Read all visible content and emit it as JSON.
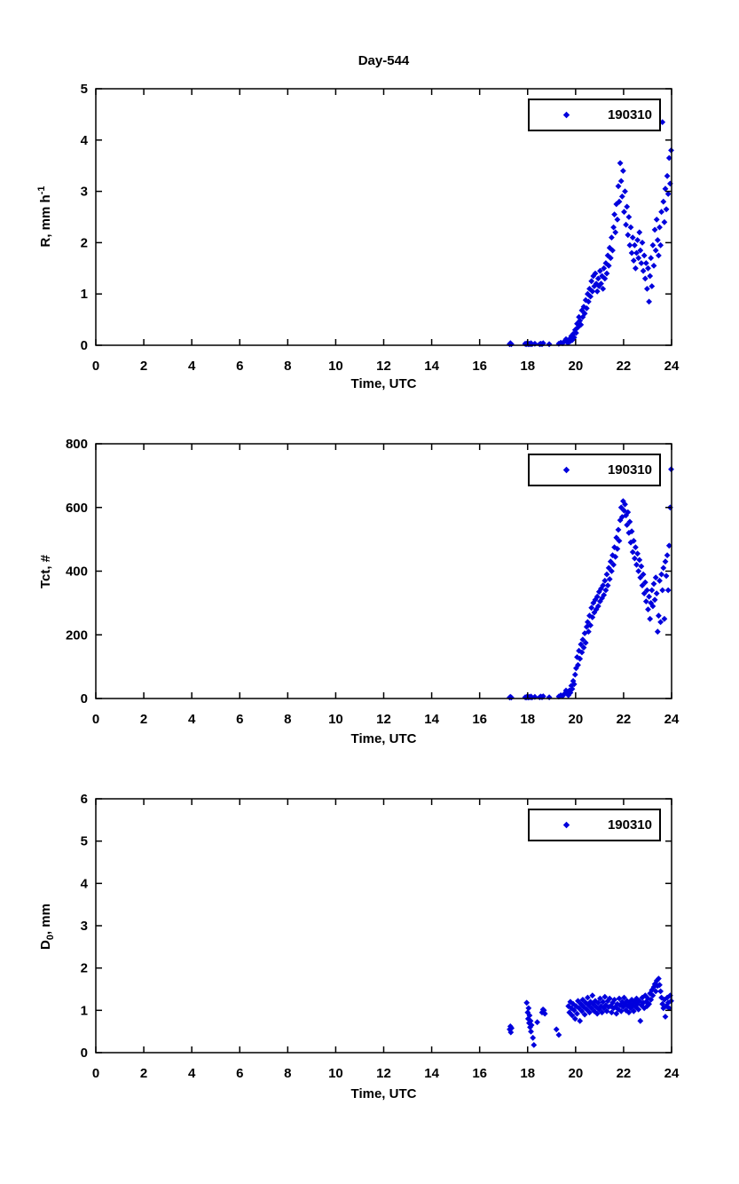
{
  "colors": {
    "marker": "#0000dd",
    "axis": "#000000",
    "background": "#ffffff"
  },
  "chart_data": [
    {
      "type": "scatter",
      "title": "Day-544",
      "xlabel": "Time, UTC",
      "ylabel_plain": "R, mm h^-1",
      "ylabel_parts": {
        "pre": "R, mm h",
        "sub": "",
        "sup": "-1",
        "post": ""
      },
      "xlim": [
        0,
        24
      ],
      "ylim": [
        0,
        5
      ],
      "xticks": [
        0,
        2,
        4,
        6,
        8,
        10,
        12,
        14,
        16,
        18,
        20,
        22,
        24
      ],
      "yticks": [
        0,
        1,
        2,
        3,
        4,
        5
      ],
      "legend": "190310",
      "legend_position": "upper-right",
      "grid": false,
      "marker": "diamond",
      "marker_color": "#0000dd",
      "points_early": [
        [
          17.25,
          0.02
        ],
        [
          17.28,
          0.04
        ],
        [
          17.32,
          0.02
        ],
        [
          17.9,
          0.03
        ],
        [
          17.94,
          0.02
        ],
        [
          17.98,
          0.04
        ],
        [
          18.02,
          0.02
        ],
        [
          18.06,
          0.03
        ],
        [
          18.1,
          0.02
        ],
        [
          18.14,
          0.04
        ],
        [
          18.18,
          0.02
        ],
        [
          18.3,
          0.03
        ],
        [
          18.5,
          0.02
        ],
        [
          18.55,
          0.03
        ],
        [
          18.6,
          0.02
        ],
        [
          18.65,
          0.04
        ],
        [
          18.9,
          0.02
        ],
        [
          19.3,
          0.03
        ],
        [
          19.38,
          0.05
        ],
        [
          19.46,
          0.04
        ],
        [
          19.54,
          0.08
        ],
        [
          19.6,
          0.12
        ],
        [
          19.64,
          0.06
        ]
      ],
      "points_dense": {
        "t_start": 19.7,
        "t_step": 0.04,
        "values": [
          0.05,
          0.12,
          0.08,
          0.18,
          0.1,
          0.22,
          0.15,
          0.3,
          0.24,
          0.42,
          0.35,
          0.55,
          0.48,
          0.4,
          0.68,
          0.55,
          0.75,
          0.62,
          0.88,
          0.72,
          1.0,
          0.85,
          1.1,
          0.95,
          1.25,
          1.05,
          1.35,
          1.15,
          1.4,
          1.2,
          1.05,
          1.3,
          1.15,
          1.45,
          1.2,
          1.35,
          1.1,
          1.5,
          1.3,
          1.6,
          1.4,
          1.75,
          1.55,
          1.9,
          1.7,
          2.1,
          1.85,
          2.3,
          2.55,
          2.2,
          2.75,
          2.45,
          3.1,
          2.8,
          3.55,
          3.2,
          2.9,
          3.4,
          2.6,
          3.0,
          2.35,
          2.7,
          2.15,
          2.5,
          1.95,
          2.3,
          1.8,
          2.1,
          1.65,
          1.95,
          1.5,
          1.8,
          2.05,
          1.7,
          2.2,
          1.85,
          1.6,
          2.0,
          1.45,
          1.75,
          1.3,
          1.6,
          1.1,
          1.5,
          0.85,
          1.35,
          1.7,
          1.15,
          1.95,
          1.55,
          2.25,
          1.85,
          2.45,
          2.05,
          1.75,
          2.3,
          1.95,
          2.6,
          4.35,
          2.8,
          2.4,
          3.05,
          2.65,
          3.3,
          2.95,
          3.65,
          3.15,
          3.8
        ]
      }
    },
    {
      "type": "scatter",
      "title": "",
      "xlabel": "Time, UTC",
      "ylabel_plain": "Tct, #",
      "ylabel_parts": {
        "pre": "Tct, #",
        "sub": "",
        "sup": "",
        "post": ""
      },
      "xlim": [
        0,
        24
      ],
      "ylim": [
        0,
        800
      ],
      "xticks": [
        0,
        2,
        4,
        6,
        8,
        10,
        12,
        14,
        16,
        18,
        20,
        22,
        24
      ],
      "yticks": [
        0,
        200,
        400,
        600,
        800
      ],
      "legend": "190310",
      "legend_position": "upper-right",
      "grid": false,
      "marker": "diamond",
      "marker_color": "#0000dd",
      "points_early": [
        [
          17.25,
          3
        ],
        [
          17.28,
          5
        ],
        [
          17.32,
          3
        ],
        [
          17.9,
          4
        ],
        [
          17.94,
          3
        ],
        [
          17.98,
          6
        ],
        [
          18.02,
          3
        ],
        [
          18.06,
          5
        ],
        [
          18.1,
          4
        ],
        [
          18.14,
          6
        ],
        [
          18.18,
          3
        ],
        [
          18.3,
          5
        ],
        [
          18.5,
          4
        ],
        [
          18.55,
          6
        ],
        [
          18.6,
          4
        ],
        [
          18.65,
          7
        ],
        [
          18.9,
          4
        ],
        [
          19.3,
          6
        ],
        [
          19.38,
          10
        ],
        [
          19.46,
          8
        ],
        [
          19.54,
          15
        ],
        [
          19.6,
          25
        ],
        [
          19.64,
          18
        ]
      ],
      "points_dense": {
        "t_start": 19.7,
        "t_step": 0.04,
        "values": [
          10,
          25,
          18,
          40,
          30,
          55,
          45,
          75,
          95,
          130,
          105,
          150,
          125,
          170,
          145,
          185,
          160,
          205,
          175,
          225,
          240,
          210,
          260,
          230,
          285,
          255,
          300,
          270,
          310,
          280,
          320,
          290,
          335,
          305,
          345,
          315,
          355,
          325,
          370,
          340,
          390,
          355,
          410,
          375,
          430,
          400,
          450,
          420,
          475,
          445,
          505,
          470,
          530,
          495,
          560,
          600,
          570,
          620,
          590,
          610,
          575,
          545,
          585,
          520,
          555,
          490,
          525,
          460,
          495,
          440,
          475,
          420,
          455,
          400,
          435,
          380,
          415,
          355,
          390,
          330,
          365,
          305,
          340,
          280,
          320,
          250,
          300,
          340,
          290,
          360,
          310,
          380,
          330,
          210,
          260,
          370,
          240,
          390,
          340,
          410,
          250,
          430,
          385,
          450,
          340,
          480,
          600,
          720
        ]
      }
    },
    {
      "type": "scatter",
      "title": "",
      "xlabel": "Time, UTC",
      "ylabel_plain": "D_0, mm",
      "ylabel_parts": {
        "pre": "D",
        "sub": "0",
        "sup": "",
        "post": ", mm"
      },
      "xlim": [
        0,
        24
      ],
      "ylim": [
        0,
        6
      ],
      "xticks": [
        0,
        2,
        4,
        6,
        8,
        10,
        12,
        14,
        16,
        18,
        20,
        22,
        24
      ],
      "yticks": [
        0,
        1,
        2,
        3,
        4,
        5,
        6
      ],
      "legend": "190310",
      "legend_position": "upper-right",
      "grid": false,
      "marker": "diamond",
      "marker_color": "#0000dd",
      "points_early": [
        [
          17.25,
          0.55
        ],
        [
          17.28,
          0.62
        ],
        [
          17.3,
          0.48
        ],
        [
          17.33,
          0.58
        ],
        [
          17.96,
          1.18
        ],
        [
          18.0,
          0.95
        ],
        [
          18.02,
          0.8
        ],
        [
          18.04,
          1.05
        ],
        [
          18.06,
          0.7
        ],
        [
          18.08,
          0.88
        ],
        [
          18.1,
          0.6
        ],
        [
          18.12,
          0.75
        ],
        [
          18.14,
          0.5
        ],
        [
          18.16,
          0.65
        ],
        [
          18.22,
          0.35
        ],
        [
          18.26,
          0.18
        ],
        [
          18.4,
          0.72
        ],
        [
          18.6,
          0.95
        ],
        [
          18.64,
          1.02
        ],
        [
          18.68,
          1.0
        ],
        [
          18.72,
          0.92
        ],
        [
          19.2,
          0.55
        ],
        [
          19.3,
          0.42
        ]
      ],
      "points_dense": {
        "t_start": 19.7,
        "t_step": 0.04,
        "values": [
          1.1,
          0.95,
          1.2,
          1.05,
          0.88,
          1.15,
          1.0,
          0.8,
          1.1,
          0.92,
          1.22,
          1.05,
          0.75,
          1.15,
          0.98,
          1.25,
          1.08,
          0.9,
          1.18,
          1.02,
          1.3,
          1.12,
          0.95,
          1.2,
          1.05,
          1.35,
          1.15,
          0.98,
          1.22,
          1.08,
          0.92,
          1.18,
          1.02,
          1.28,
          1.1,
          0.95,
          1.2,
          1.05,
          1.32,
          1.12,
          0.98,
          1.22,
          1.08,
          1.28,
          1.1,
          0.95,
          1.18,
          1.05,
          1.25,
          1.08,
          0.92,
          1.15,
          1.02,
          1.28,
          1.12,
          0.98,
          1.2,
          1.08,
          1.3,
          1.15,
          1.0,
          1.22,
          1.1,
          0.95,
          1.18,
          1.05,
          1.25,
          1.12,
          0.98,
          1.2,
          1.08,
          1.28,
          1.15,
          1.02,
          1.22,
          0.75,
          1.12,
          1.3,
          1.18,
          1.05,
          1.35,
          1.2,
          1.1,
          1.28,
          1.15,
          1.4,
          1.25,
          1.48,
          1.35,
          1.55,
          1.62,
          1.45,
          1.7,
          1.58,
          1.75,
          1.6,
          1.45,
          1.3,
          1.15,
          1.05,
          1.25,
          0.85,
          1.1,
          1.3,
          1.18,
          1.05,
          1.35,
          1.22
        ]
      }
    }
  ]
}
